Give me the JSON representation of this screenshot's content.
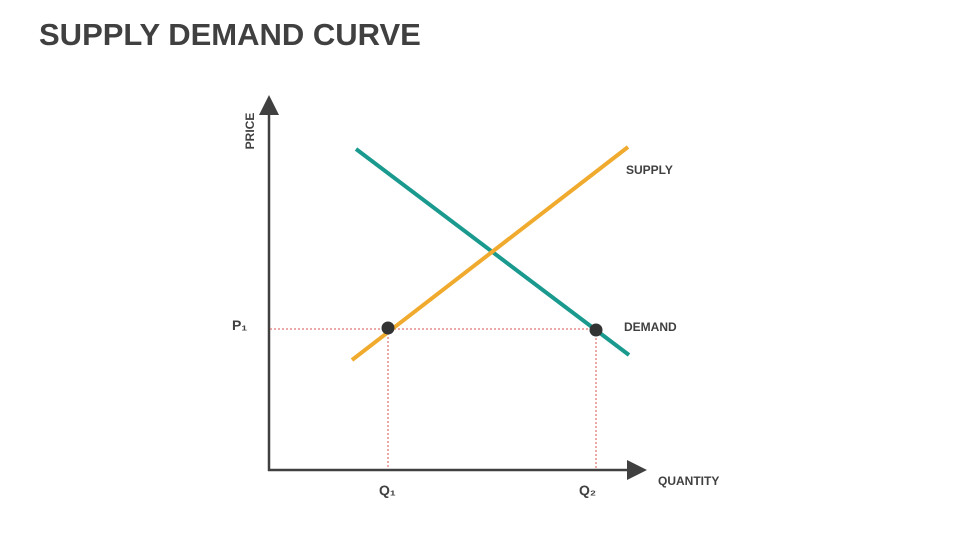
{
  "header": {
    "title": "SUPPLY DEMAND CURVE"
  },
  "axes": {
    "y_label": "PRICE",
    "x_label": "QUANTITY"
  },
  "curves": {
    "supply": "SUPPLY",
    "demand": "DEMAND"
  },
  "points": {
    "p1": "P₁",
    "q1": "Q₁",
    "q2": "Q₂"
  }
}
